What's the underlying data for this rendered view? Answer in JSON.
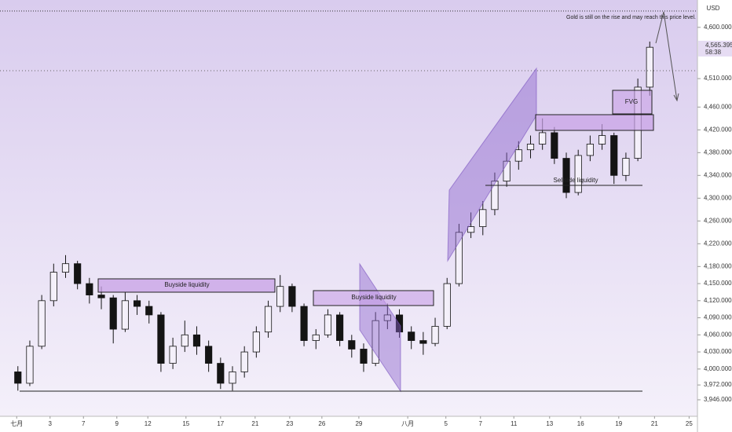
{
  "chart_data": {
    "type": "candlestick",
    "currency": "USD",
    "color": "#141414",
    "open": [
      3995,
      3975,
      4040,
      4120,
      4170,
      4185,
      4150,
      4130,
      4125,
      4070,
      4120,
      4110,
      4095,
      4010,
      4040,
      4060,
      4040,
      4010,
      3975,
      3995,
      4030,
      4065,
      4110,
      4145,
      4110,
      4050,
      4060,
      4095,
      4050,
      4035,
      4010,
      4085,
      4095,
      4065,
      4050,
      4045,
      4075,
      4150,
      4240,
      4250,
      4280,
      4330,
      4365,
      4385,
      4395,
      4415,
      4370,
      4310,
      4375,
      4395,
      4410,
      4340,
      4370,
      4495
    ],
    "high": [
      4005,
      4050,
      4130,
      4185,
      4200,
      4190,
      4160,
      4145,
      4130,
      4135,
      4130,
      4120,
      4100,
      4055,
      4085,
      4075,
      4050,
      4020,
      4005,
      4040,
      4075,
      4120,
      4165,
      4150,
      4115,
      4070,
      4105,
      4100,
      4060,
      4045,
      4100,
      4115,
      4105,
      4075,
      4065,
      4090,
      4160,
      4255,
      4275,
      4295,
      4345,
      4380,
      4400,
      4410,
      4440,
      4425,
      4380,
      4385,
      4410,
      4430,
      4415,
      4380,
      4510,
      4575
    ],
    "low": [
      3962,
      3970,
      4035,
      4110,
      4160,
      4140,
      4115,
      4105,
      4045,
      4065,
      4095,
      4080,
      3995,
      4000,
      4030,
      4025,
      3995,
      3965,
      3962,
      3985,
      4020,
      4055,
      4100,
      4100,
      4040,
      4035,
      4055,
      4040,
      4020,
      3995,
      4005,
      4070,
      4055,
      4035,
      4025,
      4040,
      4070,
      4145,
      4230,
      4235,
      4270,
      4320,
      4350,
      4370,
      4385,
      4360,
      4300,
      4305,
      4365,
      4385,
      4325,
      4330,
      4365,
      4480
    ],
    "close": [
      3975,
      4040,
      4120,
      4170,
      4185,
      4150,
      4130,
      4125,
      4070,
      4120,
      4110,
      4095,
      4010,
      4040,
      4060,
      4040,
      4010,
      3975,
      3995,
      4030,
      4065,
      4110,
      4145,
      4110,
      4050,
      4060,
      4095,
      4050,
      4035,
      4010,
      4085,
      4095,
      4065,
      4050,
      4045,
      4075,
      4150,
      4240,
      4250,
      4280,
      4330,
      4365,
      4385,
      4395,
      4415,
      4370,
      4310,
      4375,
      4395,
      4410,
      4340,
      4370,
      4495,
      4565
    ],
    "xlim": [
      -1.5,
      57
    ],
    "xticks": [
      {
        "value": -0.1,
        "label": "七月"
      },
      {
        "value": 2.7,
        "label": "3"
      },
      {
        "value": 5.5,
        "label": "7"
      },
      {
        "value": 8.3,
        "label": "9"
      },
      {
        "value": 10.9,
        "label": "12"
      },
      {
        "value": 14.1,
        "label": "15"
      },
      {
        "value": 17.0,
        "label": "17"
      },
      {
        "value": 19.9,
        "label": "21"
      },
      {
        "value": 22.8,
        "label": "23"
      },
      {
        "value": 25.5,
        "label": "26"
      },
      {
        "value": 28.6,
        "label": "29"
      },
      {
        "value": 32.7,
        "label": "八月"
      },
      {
        "value": 35.9,
        "label": "5"
      },
      {
        "value": 38.8,
        "label": "7"
      },
      {
        "value": 41.6,
        "label": "11"
      },
      {
        "value": 44.6,
        "label": "13"
      },
      {
        "value": 47.2,
        "label": "16"
      },
      {
        "value": 50.4,
        "label": "19"
      },
      {
        "value": 53.4,
        "label": "21"
      },
      {
        "value": 56.3,
        "label": "25"
      }
    ],
    "ylim": [
      3917,
      4648
    ],
    "yticks": [
      {
        "value": 3946,
        "label": "3,946.000"
      },
      {
        "value": 3972,
        "label": "3,972.000"
      },
      {
        "value": 4000,
        "label": "4,000.000"
      },
      {
        "value": 4030,
        "label": "4,030.000"
      },
      {
        "value": 4060,
        "label": "4,060.000"
      },
      {
        "value": 4090,
        "label": "4,090.000"
      },
      {
        "value": 4120,
        "label": "4,120.000"
      },
      {
        "value": 4150,
        "label": "4,150.000"
      },
      {
        "value": 4180,
        "label": "4,180.000"
      },
      {
        "value": 4220,
        "label": "4,220.000"
      },
      {
        "value": 4260,
        "label": "4,260.000"
      },
      {
        "value": 4300,
        "label": "4,300.000"
      },
      {
        "value": 4340,
        "label": "4,340.000"
      },
      {
        "value": 4380,
        "label": "4,380.000"
      },
      {
        "value": 4420,
        "label": "4,420.000"
      },
      {
        "value": 4460,
        "label": "4,460.000"
      },
      {
        "value": 4510,
        "label": "4,510.000"
      },
      {
        "value": 4600,
        "label": "4,600.000"
      }
    ],
    "last_price": {
      "value": 4565.395,
      "label": "4,565.395"
    },
    "countdown": "58:38",
    "annotations": [
      "Buyside liquidity",
      "Buyside liquidity",
      "Sellside liquidity",
      "FVG",
      "Gold is still on the rise and may reach this price level."
    ],
    "grid": false
  }
}
